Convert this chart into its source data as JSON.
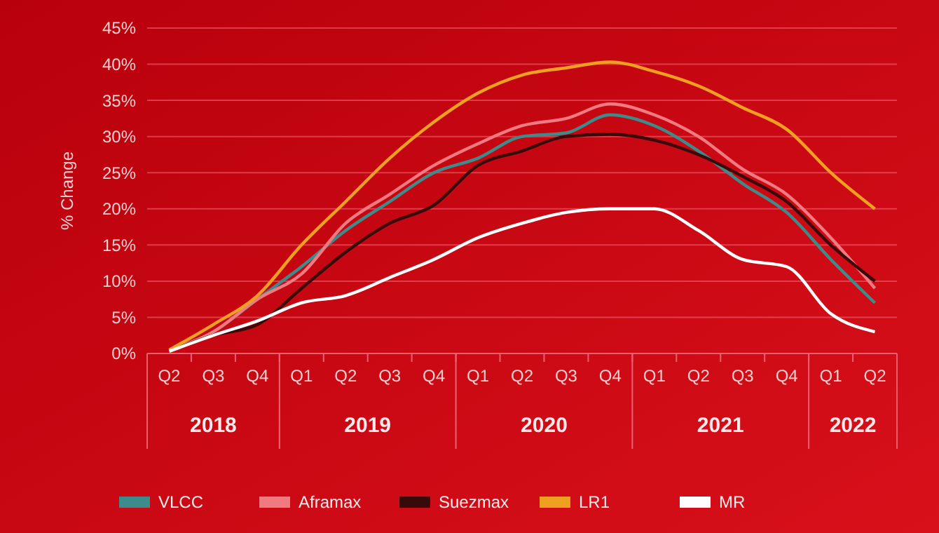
{
  "chart_data": {
    "type": "line",
    "ylabel": "% Change",
    "categories": [
      "Q2",
      "Q3",
      "Q4",
      "Q1",
      "Q2",
      "Q3",
      "Q4",
      "Q1",
      "Q2",
      "Q3",
      "Q4",
      "Q1",
      "Q2",
      "Q3",
      "Q4",
      "Q1",
      "Q2"
    ],
    "annotations": [
      "2018",
      "2019",
      "2020",
      "2021",
      "2022"
    ],
    "ylim": [
      0,
      45
    ],
    "yticks": [
      {
        "value": 0,
        "label": "0%"
      },
      {
        "value": 5,
        "label": "5%"
      },
      {
        "value": 10,
        "label": "10%"
      },
      {
        "value": 15,
        "label": "15%"
      },
      {
        "value": 20,
        "label": "20%"
      },
      {
        "value": 25,
        "label": "25%"
      },
      {
        "value": 30,
        "label": "30%"
      },
      {
        "value": 35,
        "label": "35%"
      },
      {
        "value": 40,
        "label": "40%"
      },
      {
        "value": 45,
        "label": "45%"
      }
    ],
    "grid": "y",
    "legend": "bottom",
    "marker": "none",
    "line_style": "solid",
    "series": [
      {
        "name": "VLCC",
        "color": "#3d8c8c",
        "values": [
          0.5,
          3,
          7.5,
          12,
          17,
          21,
          25,
          27,
          30,
          30.5,
          33,
          31.5,
          28,
          23.5,
          19.5,
          13,
          7
        ]
      },
      {
        "name": "Aframax",
        "color": "#f07a80",
        "values": [
          0.5,
          3,
          7.5,
          11,
          18,
          22,
          26,
          29,
          31.5,
          32.5,
          34.5,
          33,
          30,
          25.5,
          22,
          16,
          9
        ]
      },
      {
        "name": "Suezmax",
        "color": "#3a0a0a",
        "values": [
          0.3,
          2.5,
          4,
          9,
          14,
          18,
          20.5,
          26,
          28,
          30,
          30.3,
          29.5,
          27.5,
          24.5,
          21,
          15,
          10
        ]
      },
      {
        "name": "LR1",
        "color": "#f0a020",
        "values": [
          0.5,
          4,
          8,
          15,
          21,
          27,
          32,
          36,
          38.5,
          39.5,
          40.3,
          39,
          37,
          34,
          31,
          25,
          20
        ]
      },
      {
        "name": "MR",
        "color": "#ffffff",
        "values": [
          0.3,
          2.5,
          4.5,
          7,
          8,
          10.5,
          13,
          16,
          18,
          19.5,
          20,
          20,
          17,
          13,
          12,
          5.5,
          3
        ]
      }
    ]
  }
}
